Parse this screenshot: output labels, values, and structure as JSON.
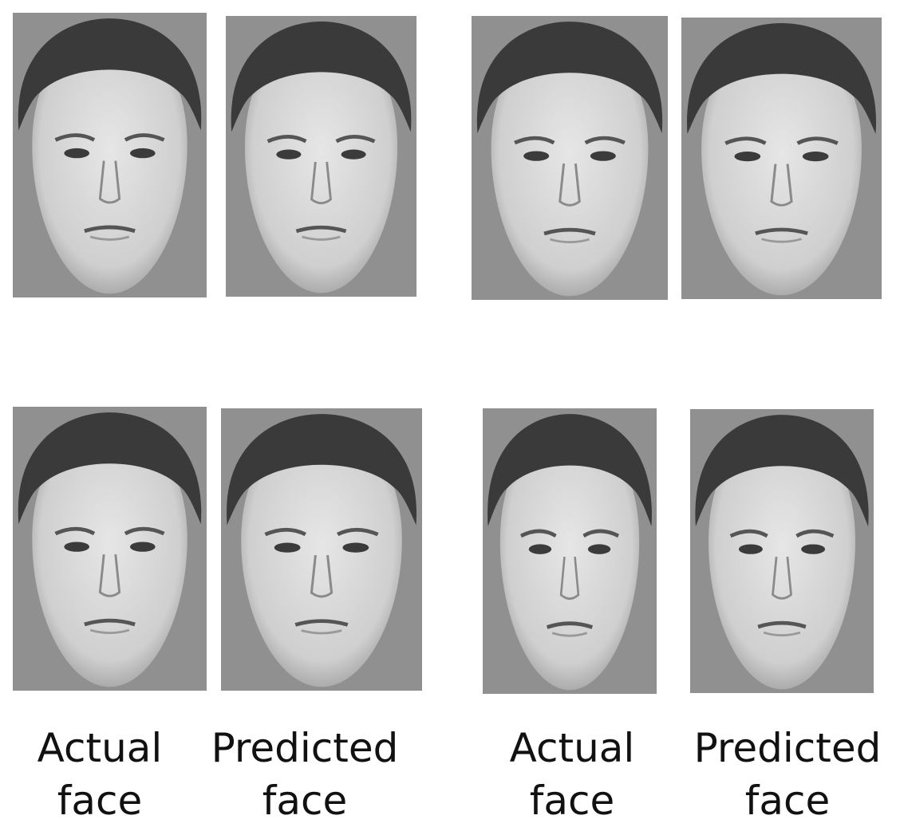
{
  "captions": [
    "Actual face",
    "Predicted face",
    "Actual face",
    "Predicted face"
  ]
}
